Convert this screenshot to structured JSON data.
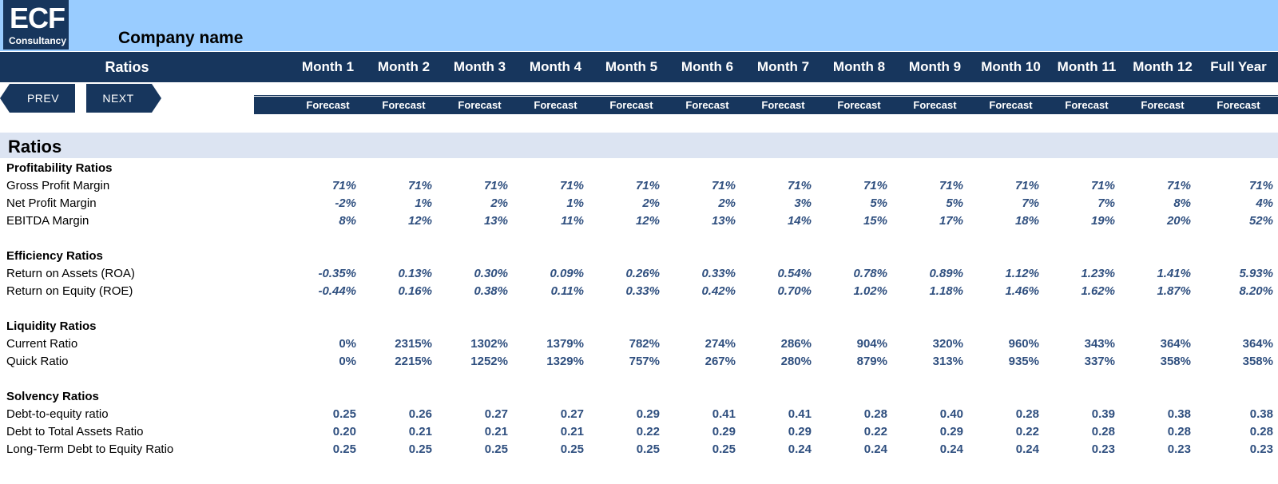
{
  "header": {
    "logo_big": "ECF",
    "logo_small": "Consultancy",
    "company": "Company name",
    "ratios_label": "Ratios",
    "months": [
      "Month 1",
      "Month 2",
      "Month 3",
      "Month 4",
      "Month 5",
      "Month 6",
      "Month 7",
      "Month 8",
      "Month 9",
      "Month 10",
      "Month 11",
      "Month 12",
      "Full Year"
    ],
    "forecast": [
      "Forecast",
      "Forecast",
      "Forecast",
      "Forecast",
      "Forecast",
      "Forecast",
      "Forecast",
      "Forecast",
      "Forecast",
      "Forecast",
      "Forecast",
      "Forecast",
      "Forecast"
    ]
  },
  "nav": {
    "prev": "PREV",
    "next": "NEXT"
  },
  "section_title": "Ratios",
  "groups": {
    "profitability": "Profitability Ratios",
    "efficiency": "Efficiency Ratios",
    "liquidity": "Liquidity Ratios",
    "solvency": "Solvency Ratios"
  },
  "rows": {
    "gpm": {
      "label": "Gross Profit Margin",
      "values": [
        "71%",
        "71%",
        "71%",
        "71%",
        "71%",
        "71%",
        "71%",
        "71%",
        "71%",
        "71%",
        "71%",
        "71%",
        "71%"
      ]
    },
    "npm": {
      "label": "Net Profit Margin",
      "values": [
        "-2%",
        "1%",
        "2%",
        "1%",
        "2%",
        "2%",
        "3%",
        "5%",
        "5%",
        "7%",
        "7%",
        "8%",
        "4%"
      ]
    },
    "ebitda": {
      "label": "EBITDA Margin",
      "values": [
        "8%",
        "12%",
        "13%",
        "11%",
        "12%",
        "13%",
        "14%",
        "15%",
        "17%",
        "18%",
        "19%",
        "20%",
        "52%"
      ]
    },
    "roa": {
      "label": "Return on Assets (ROA)",
      "values": [
        "-0.35%",
        "0.13%",
        "0.30%",
        "0.09%",
        "0.26%",
        "0.33%",
        "0.54%",
        "0.78%",
        "0.89%",
        "1.12%",
        "1.23%",
        "1.41%",
        "5.93%"
      ]
    },
    "roe": {
      "label": "Return on Equity (ROE)",
      "values": [
        "-0.44%",
        "0.16%",
        "0.38%",
        "0.11%",
        "0.33%",
        "0.42%",
        "0.70%",
        "1.02%",
        "1.18%",
        "1.46%",
        "1.62%",
        "1.87%",
        "8.20%"
      ]
    },
    "current": {
      "label": "Current Ratio",
      "values": [
        "0%",
        "2315%",
        "1302%",
        "1379%",
        "782%",
        "274%",
        "286%",
        "904%",
        "320%",
        "960%",
        "343%",
        "364%",
        "364%"
      ]
    },
    "quick": {
      "label": "Quick Ratio",
      "values": [
        "0%",
        "2215%",
        "1252%",
        "1329%",
        "757%",
        "267%",
        "280%",
        "879%",
        "313%",
        "935%",
        "337%",
        "358%",
        "358%"
      ]
    },
    "de": {
      "label": "Debt-to-equity ratio",
      "values": [
        "0.25",
        "0.26",
        "0.27",
        "0.27",
        "0.29",
        "0.41",
        "0.41",
        "0.28",
        "0.40",
        "0.28",
        "0.39",
        "0.38",
        "0.38"
      ]
    },
    "dta": {
      "label": "Debt to Total Assets Ratio",
      "values": [
        "0.20",
        "0.21",
        "0.21",
        "0.21",
        "0.22",
        "0.29",
        "0.29",
        "0.22",
        "0.29",
        "0.22",
        "0.28",
        "0.28",
        "0.28"
      ]
    },
    "ltde": {
      "label": "Long-Term Debt to Equity Ratio",
      "values": [
        "0.25",
        "0.25",
        "0.25",
        "0.25",
        "0.25",
        "0.25",
        "0.24",
        "0.24",
        "0.24",
        "0.24",
        "0.23",
        "0.23",
        "0.23"
      ]
    }
  }
}
